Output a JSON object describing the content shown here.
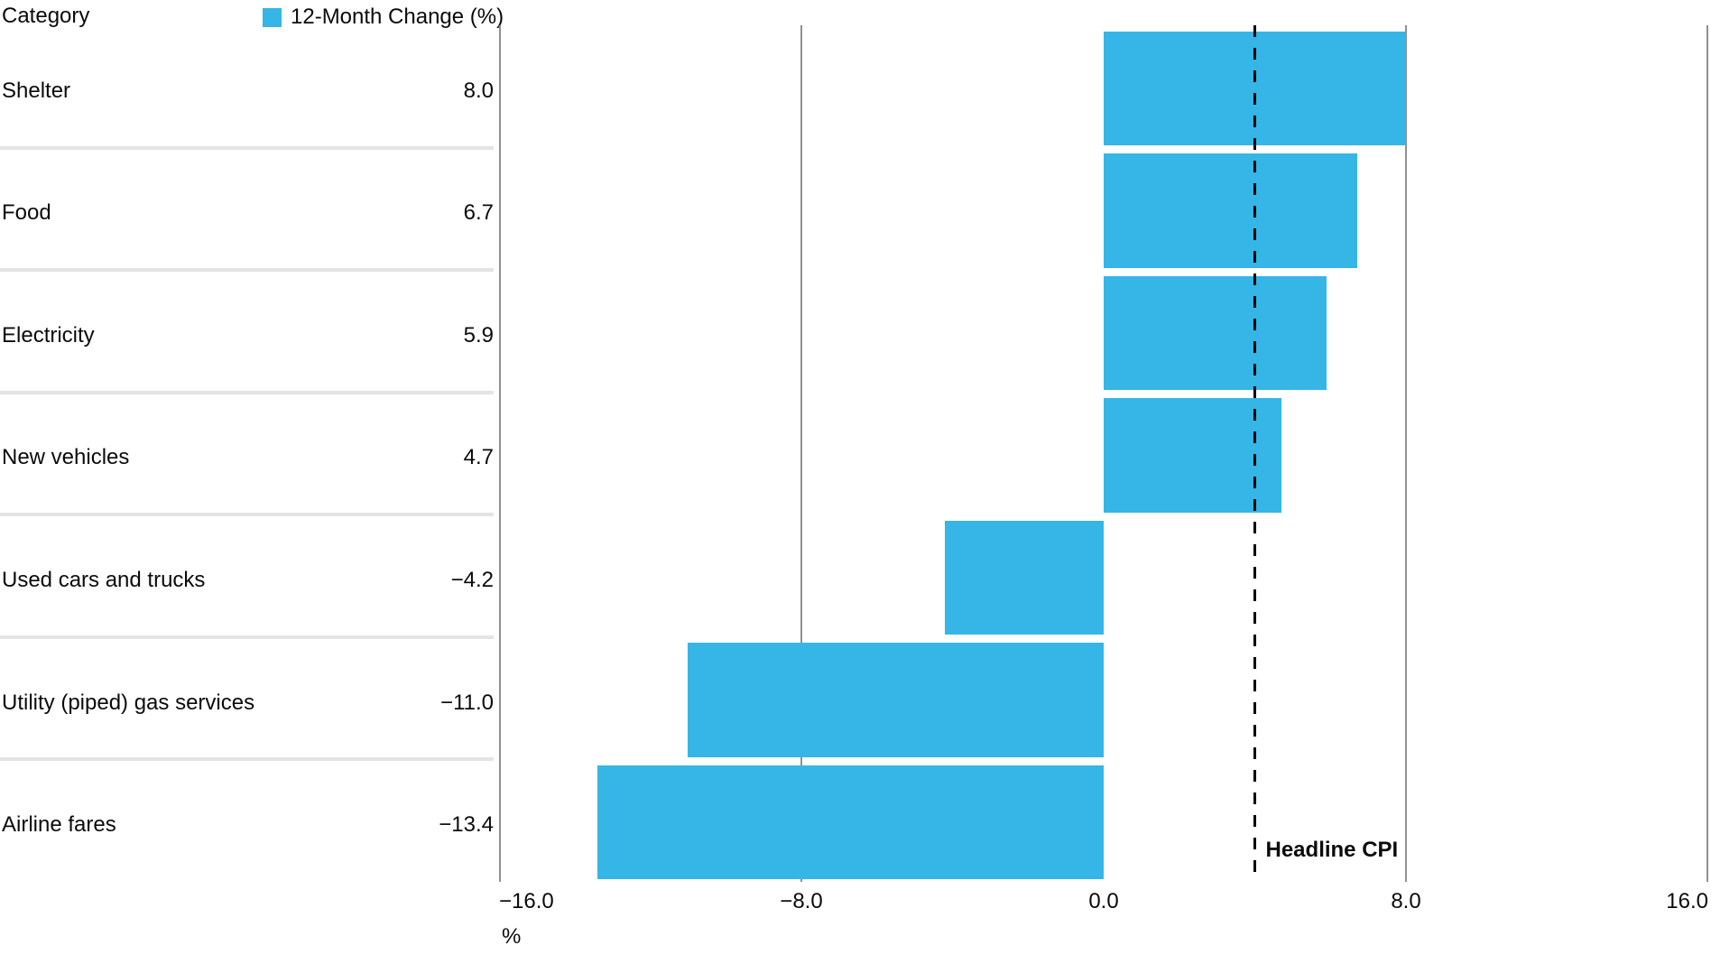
{
  "header": {
    "category_label": "Category",
    "legend": {
      "label": "12-Month Change (%)"
    }
  },
  "chart_data": {
    "type": "bar",
    "orientation": "horizontal",
    "series_name": "12-Month Change (%)",
    "categories": [
      "Shelter",
      "Food",
      "Electricity",
      "New vehicles",
      "Used cars and trucks",
      "Utility (piped) gas services",
      "Airline fares"
    ],
    "values": [
      8.0,
      6.7,
      5.9,
      4.7,
      -4.2,
      -11.0,
      -13.4
    ],
    "value_labels": [
      "8.0",
      "6.7",
      "5.9",
      "4.7",
      "−4.2",
      "−11.0",
      "−13.4"
    ],
    "xlabel": "%",
    "xlim": [
      -16,
      16
    ],
    "xticks": [
      -16,
      -8,
      0,
      8,
      16
    ],
    "xtick_labels": [
      "−16.0",
      "−8.0",
      "0.0",
      "8.0",
      "16.0"
    ],
    "gridline_values": [
      -16,
      -8,
      8,
      16
    ],
    "grid": "vertical",
    "legend_position": "top",
    "reference_line": {
      "label": "Headline CPI",
      "value": 4.0
    }
  },
  "colors": {
    "bar": "#35B6E6",
    "grid": "#909090",
    "separator": "#E4E4E4",
    "reference_line": "#000000",
    "text": "#0B0B0B"
  }
}
